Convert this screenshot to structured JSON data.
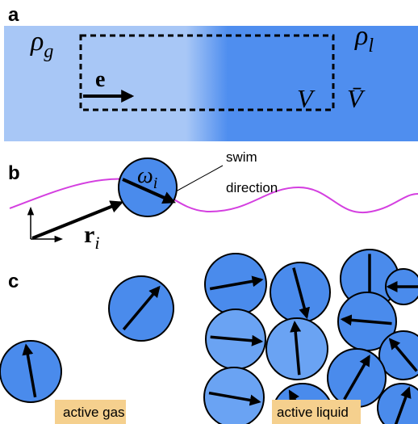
{
  "panels": {
    "a": "a",
    "b": "b",
    "c": "c"
  },
  "symbols": {
    "rho_g": {
      "symbol": "ρ",
      "subscript": "g"
    },
    "rho_l": {
      "symbol": "ρ",
      "subscript": "l"
    },
    "e": "e",
    "V": "V",
    "V_bar": "V̄",
    "omega_i": {
      "symbol": "ω",
      "subscript": "i"
    },
    "r_i": {
      "symbol": "r",
      "subscript": "i"
    }
  },
  "annotation": {
    "line1": "swim",
    "line2": "direction"
  },
  "labels": {
    "gas": "active gas",
    "liquid": "active liquid"
  }
}
